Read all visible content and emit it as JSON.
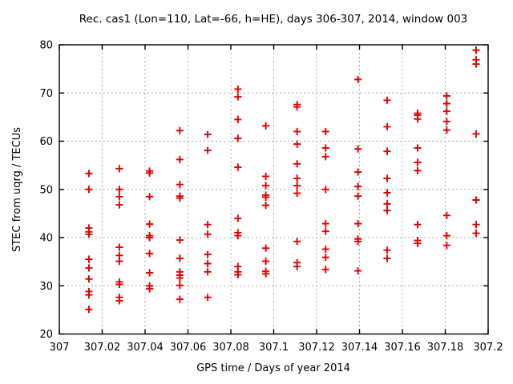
{
  "chart_data": {
    "type": "scatter",
    "title": "Rec. cas1 (Lon=110, Lat=-66, h=HE), days 306-307, 2014, window 003",
    "xlabel": "GPS time / Days of year 2014",
    "ylabel": "STEC from uqrg / TECUs",
    "xlim": [
      307,
      307.2
    ],
    "ylim": [
      20,
      80
    ],
    "xticks": [
      307,
      307.02,
      307.04,
      307.06,
      307.08,
      307.1,
      307.12,
      307.14,
      307.16,
      307.18,
      307.2
    ],
    "xtick_labels": [
      "307",
      "307.02",
      "307.04",
      "307.06",
      "307.08",
      "307.1",
      "307.12",
      "307.14",
      "307.16",
      "307.18",
      "307.2"
    ],
    "yticks": [
      20,
      30,
      40,
      50,
      60,
      70,
      80
    ],
    "ytick_labels": [
      "20",
      "30",
      "40",
      "50",
      "60",
      "70",
      "80"
    ],
    "grid": true,
    "legend": "none",
    "marker": "plus",
    "marker_color": "#e10000",
    "grid_color": "#a8a8a8",
    "frame_color": "#000000",
    "series_name": "STEC from uqrg",
    "columns": [
      {
        "t": 307.0138,
        "stec": [
          53.3,
          50.0,
          42.0,
          41.2,
          40.7,
          35.5,
          33.7,
          31.4,
          28.8,
          28.1,
          25.1
        ]
      },
      {
        "t": 307.028,
        "stec": [
          54.3,
          50.0,
          48.5,
          46.8,
          38.0,
          36.3,
          35.1,
          30.8,
          30.3,
          27.6,
          26.9
        ]
      },
      {
        "t": 307.0421,
        "stec": [
          53.8,
          53.4,
          48.5,
          42.8,
          40.4,
          40.0,
          36.7,
          32.7,
          30.0,
          29.4
        ]
      },
      {
        "t": 307.0562,
        "stec": [
          62.2,
          56.2,
          51.0,
          48.6,
          48.2,
          39.5,
          35.7,
          32.9,
          32.2,
          31.6,
          30.1,
          27.2
        ]
      },
      {
        "t": 307.0692,
        "stec": [
          61.4,
          58.1,
          42.7,
          40.7,
          36.5,
          34.6,
          32.9,
          27.6
        ]
      },
      {
        "t": 307.0833,
        "stec": [
          70.8,
          69.2,
          64.5,
          60.6,
          54.6,
          44.0,
          41.0,
          40.4,
          34.0,
          32.9,
          32.3
        ]
      },
      {
        "t": 307.0963,
        "stec": [
          63.2,
          52.7,
          50.8,
          48.8,
          48.4,
          46.7,
          37.8,
          35.1,
          33.0,
          32.5
        ]
      },
      {
        "t": 307.1109,
        "stec": [
          67.6,
          67.1,
          62.0,
          59.4,
          55.3,
          52.3,
          50.8,
          49.2,
          39.2,
          34.8,
          34.0
        ]
      },
      {
        "t": 307.1242,
        "stec": [
          62.0,
          58.6,
          56.8,
          50.0,
          42.9,
          41.3,
          37.6,
          35.9,
          33.4
        ]
      },
      {
        "t": 307.1393,
        "stec": [
          72.8,
          58.4,
          53.6,
          50.6,
          48.6,
          42.9,
          39.7,
          39.2,
          33.1
        ]
      },
      {
        "t": 307.1529,
        "stec": [
          68.5,
          63.0,
          57.9,
          52.3,
          49.3,
          47.0,
          45.6,
          37.4,
          35.7
        ]
      },
      {
        "t": 307.1671,
        "stec": [
          65.8,
          65.4,
          64.6,
          58.6,
          55.6,
          53.9,
          42.7,
          39.4,
          38.8
        ]
      },
      {
        "t": 307.1807,
        "stec": [
          69.4,
          67.8,
          66.2,
          64.1,
          62.3,
          44.6,
          40.4,
          38.4
        ]
      },
      {
        "t": 307.1944,
        "stec": [
          78.9,
          76.9,
          76.0,
          61.5,
          47.8,
          42.7,
          40.9
        ]
      }
    ]
  }
}
